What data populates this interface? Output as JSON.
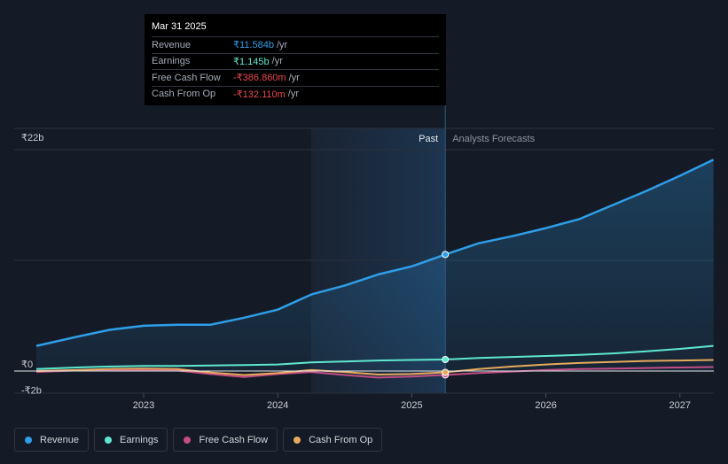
{
  "tooltip": {
    "date": "Mar 31 2025",
    "rows": [
      {
        "label": "Revenue",
        "value": "₹11.584b",
        "unit": "/yr",
        "color": "#2f9ee8"
      },
      {
        "label": "Earnings",
        "value": "₹1.145b",
        "unit": "/yr",
        "color": "#5ee8cf"
      },
      {
        "label": "Free Cash Flow",
        "value": "-₹386.860m",
        "unit": "/yr",
        "color": "#e8484c"
      },
      {
        "label": "Cash From Op",
        "value": "-₹132.110m",
        "unit": "/yr",
        "color": "#e8484c"
      }
    ]
  },
  "legend": [
    {
      "label": "Revenue",
      "color": "#2f9ee8"
    },
    {
      "label": "Earnings",
      "color": "#5ee8cf"
    },
    {
      "label": "Free Cash Flow",
      "color": "#c34d86"
    },
    {
      "label": "Cash From Op",
      "color": "#e8a95c"
    }
  ],
  "chart_data": {
    "type": "line",
    "title": "",
    "xlabel": "",
    "ylabel": "",
    "y_tick_labels": [
      {
        "label": "₹22b",
        "value": 22
      },
      {
        "label": "₹0",
        "value": 0
      },
      {
        "label": "-₹2b",
        "value": -2
      }
    ],
    "x_tick_labels": [
      {
        "label": "2023",
        "value": 2023.0
      },
      {
        "label": "2024",
        "value": 2024.0
      },
      {
        "label": "2025",
        "value": 2025.0
      },
      {
        "label": "2026",
        "value": 2026.0
      },
      {
        "label": "2027",
        "value": 2027.0
      }
    ],
    "xlim": [
      2022.2,
      2027.25
    ],
    "ylim": [
      -2,
      22
    ],
    "past_label": "Past",
    "forecast_label": "Analysts Forecasts",
    "past_region_start": 2024.25,
    "divider_x": 2025.25,
    "series": [
      {
        "name": "Revenue",
        "color": "#2f9ee8",
        "fill": true,
        "points": [
          [
            2022.2,
            2.5
          ],
          [
            2022.5,
            3.4
          ],
          [
            2022.75,
            4.1
          ],
          [
            2023.0,
            4.5
          ],
          [
            2023.25,
            4.6
          ],
          [
            2023.5,
            4.6
          ],
          [
            2023.75,
            5.3
          ],
          [
            2024.0,
            6.1
          ],
          [
            2024.25,
            7.6
          ],
          [
            2024.5,
            8.5
          ],
          [
            2024.75,
            9.6
          ],
          [
            2025.0,
            10.4
          ],
          [
            2025.25,
            11.584
          ],
          [
            2025.5,
            12.7
          ],
          [
            2025.75,
            13.4
          ],
          [
            2026.0,
            14.2
          ],
          [
            2026.25,
            15.1
          ],
          [
            2026.5,
            16.5
          ],
          [
            2026.75,
            17.9
          ],
          [
            2027.0,
            19.4
          ],
          [
            2027.25,
            21.0
          ]
        ]
      },
      {
        "name": "Earnings",
        "color": "#5ee8cf",
        "fill": false,
        "points": [
          [
            2022.2,
            0.2
          ],
          [
            2022.5,
            0.35
          ],
          [
            2022.75,
            0.45
          ],
          [
            2023.0,
            0.5
          ],
          [
            2023.25,
            0.5
          ],
          [
            2023.5,
            0.55
          ],
          [
            2023.75,
            0.6
          ],
          [
            2024.0,
            0.65
          ],
          [
            2024.25,
            0.85
          ],
          [
            2024.5,
            0.95
          ],
          [
            2024.75,
            1.05
          ],
          [
            2025.0,
            1.1
          ],
          [
            2025.25,
            1.145
          ],
          [
            2025.5,
            1.3
          ],
          [
            2025.75,
            1.4
          ],
          [
            2026.0,
            1.5
          ],
          [
            2026.25,
            1.6
          ],
          [
            2026.5,
            1.75
          ],
          [
            2026.75,
            1.95
          ],
          [
            2027.0,
            2.2
          ],
          [
            2027.25,
            2.5
          ]
        ]
      },
      {
        "name": "Free Cash Flow",
        "color": "#c34d86",
        "fill": false,
        "points": [
          [
            2022.2,
            -0.1
          ],
          [
            2022.5,
            0.05
          ],
          [
            2022.75,
            0.1
          ],
          [
            2023.0,
            0.1
          ],
          [
            2023.25,
            0.05
          ],
          [
            2023.5,
            -0.3
          ],
          [
            2023.75,
            -0.6
          ],
          [
            2024.0,
            -0.3
          ],
          [
            2024.25,
            -0.1
          ],
          [
            2024.5,
            -0.4
          ],
          [
            2024.75,
            -0.65
          ],
          [
            2025.0,
            -0.55
          ],
          [
            2025.25,
            -0.387
          ],
          [
            2025.5,
            -0.2
          ],
          [
            2025.75,
            -0.05
          ],
          [
            2026.0,
            0.1
          ],
          [
            2026.25,
            0.2
          ],
          [
            2026.5,
            0.25
          ],
          [
            2026.75,
            0.3
          ],
          [
            2027.0,
            0.35
          ],
          [
            2027.25,
            0.4
          ]
        ]
      },
      {
        "name": "Cash From Op",
        "color": "#e8a95c",
        "fill": false,
        "points": [
          [
            2022.2,
            0.0
          ],
          [
            2022.5,
            0.1
          ],
          [
            2022.75,
            0.2
          ],
          [
            2023.0,
            0.25
          ],
          [
            2023.25,
            0.2
          ],
          [
            2023.5,
            -0.15
          ],
          [
            2023.75,
            -0.4
          ],
          [
            2024.0,
            -0.2
          ],
          [
            2024.25,
            0.1
          ],
          [
            2024.5,
            -0.1
          ],
          [
            2024.75,
            -0.35
          ],
          [
            2025.0,
            -0.3
          ],
          [
            2025.25,
            -0.132
          ],
          [
            2025.5,
            0.2
          ],
          [
            2025.75,
            0.45
          ],
          [
            2026.0,
            0.65
          ],
          [
            2026.25,
            0.8
          ],
          [
            2026.5,
            0.9
          ],
          [
            2026.75,
            1.0
          ],
          [
            2027.0,
            1.05
          ],
          [
            2027.25,
            1.1
          ]
        ]
      }
    ]
  }
}
